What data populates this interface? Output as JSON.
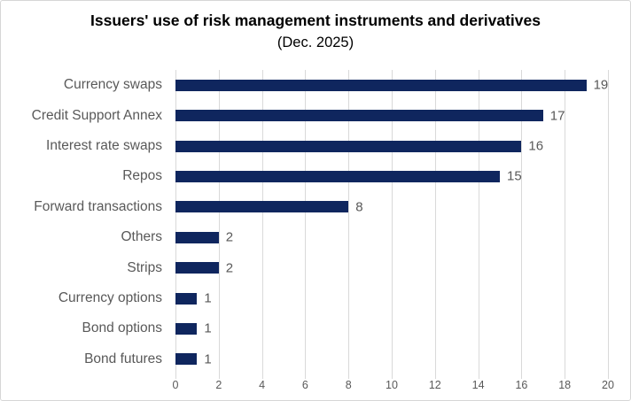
{
  "chart_data": {
    "type": "bar",
    "orientation": "horizontal",
    "title": "Issuers' use of risk management instruments and derivatives",
    "subtitle": "(Dec. 2025)",
    "categories": [
      "Currency swaps",
      "Credit Support Annex",
      "Interest rate swaps",
      "Repos",
      "Forward transactions",
      "Others",
      "Strips",
      "Currency options",
      "Bond options",
      "Bond futures"
    ],
    "values": [
      19,
      17,
      16,
      15,
      8,
      2,
      2,
      1,
      1,
      1
    ],
    "xlabel": "",
    "ylabel": "",
    "xlim": [
      0,
      20
    ],
    "xticks": [
      0,
      2,
      4,
      6,
      8,
      10,
      12,
      14,
      16,
      18,
      20
    ],
    "grid": true,
    "legend": "none",
    "bar_color": "#0f265e",
    "grid_color": "#d9d9d9",
    "text_color": "#595959",
    "title_color": "#000000"
  }
}
